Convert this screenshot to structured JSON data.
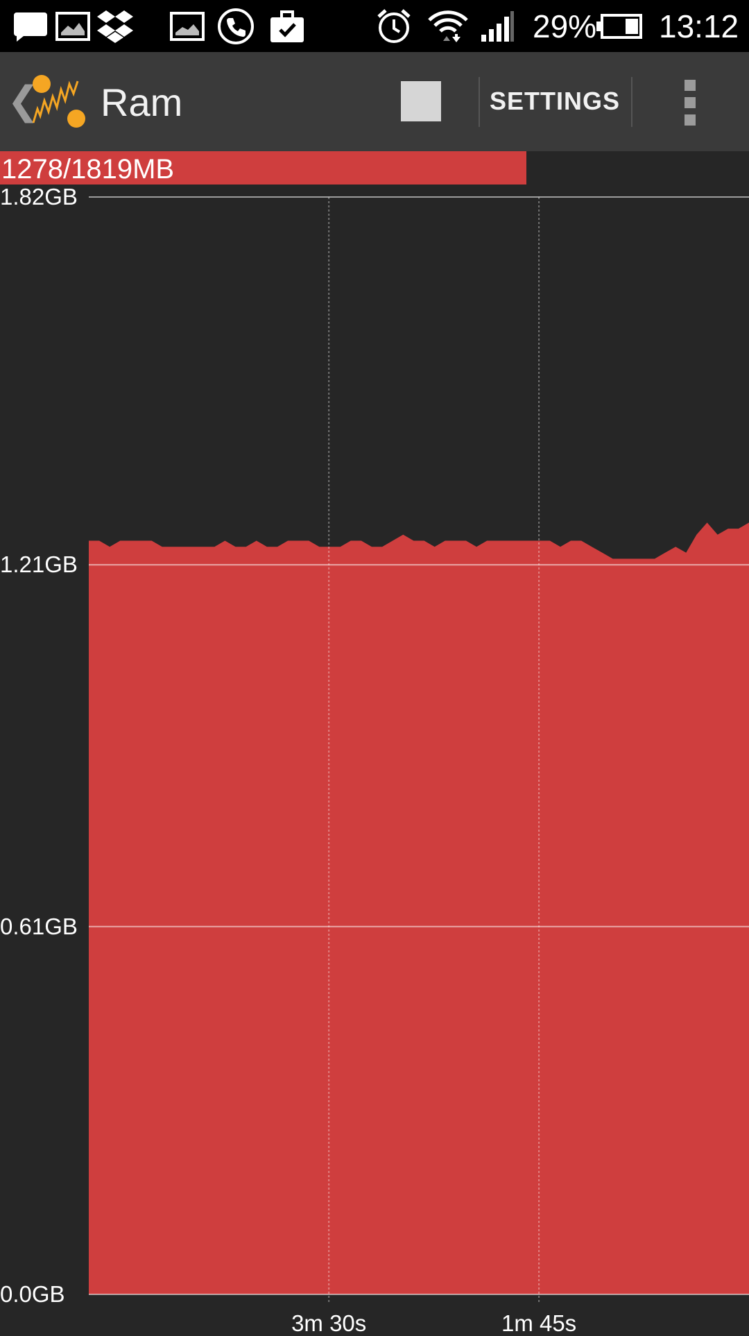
{
  "status_bar": {
    "icons": [
      "chat-icon",
      "image-icon",
      "dropbox-icon",
      "image-icon",
      "phone-icon",
      "briefcase-check-icon",
      "alarm-icon",
      "wifi-icon",
      "signal-icon",
      "battery-icon"
    ],
    "battery_percent": "29%",
    "time": "13:12"
  },
  "action_bar": {
    "title": "Ram",
    "settings_label": "SETTINGS"
  },
  "usage": {
    "label": "1278/1819MB",
    "fraction": 0.7026
  },
  "colors": {
    "accent_red": "#cf3e3e",
    "background": "#262626",
    "actionbar": "#3a3a3a",
    "logo_orange": "#f5a623"
  },
  "chart_data": {
    "type": "area",
    "y_tick_labels": [
      "1.82GB",
      "1.21GB",
      "0.61GB",
      "0.0GB"
    ],
    "y_ticks": [
      1.82,
      1.21,
      0.61,
      0.0
    ],
    "ylim": [
      0,
      1.82
    ],
    "x_tick_labels": [
      "3m 30s",
      "1m 45s"
    ],
    "x_ticks": [
      210,
      105
    ],
    "xlim": [
      330,
      0
    ],
    "x_unit": "seconds ago",
    "grid": true,
    "values": [
      1.25,
      1.25,
      1.24,
      1.25,
      1.25,
      1.25,
      1.25,
      1.24,
      1.24,
      1.24,
      1.24,
      1.24,
      1.24,
      1.25,
      1.24,
      1.24,
      1.25,
      1.24,
      1.24,
      1.25,
      1.25,
      1.25,
      1.24,
      1.24,
      1.24,
      1.25,
      1.25,
      1.24,
      1.24,
      1.25,
      1.26,
      1.25,
      1.25,
      1.24,
      1.25,
      1.25,
      1.25,
      1.24,
      1.25,
      1.25,
      1.25,
      1.25,
      1.25,
      1.25,
      1.25,
      1.24,
      1.25,
      1.25,
      1.24,
      1.23,
      1.22,
      1.22,
      1.22,
      1.22,
      1.22,
      1.23,
      1.24,
      1.23,
      1.26,
      1.28,
      1.26,
      1.27,
      1.27,
      1.28
    ]
  }
}
